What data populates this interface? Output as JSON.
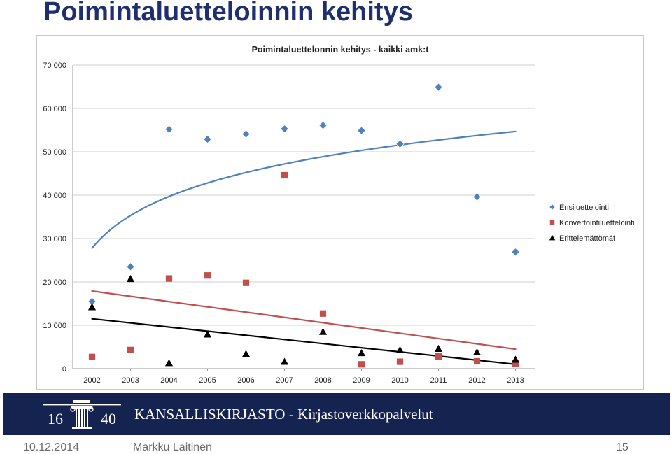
{
  "slide": {
    "title": "Poimintaluetteloinnin kehitys"
  },
  "brand": {
    "logo_text_left": "16",
    "logo_text_right": "40",
    "name": "KANSALLISKIRJASTO - Kirjastoverkkopalvelut",
    "bar_color": "#14234f"
  },
  "footer": {
    "date": "10.12.2014",
    "author": "Markku Laitinen",
    "page": "15"
  },
  "chart_data": {
    "type": "scatter",
    "title": "Poimintaluettelonnin kehitys - kaikki amk:t",
    "x": [
      "2002",
      "2003",
      "2004",
      "2005",
      "2006",
      "2007",
      "2008",
      "2009",
      "2010",
      "2011",
      "2012",
      "2013"
    ],
    "ylim": [
      0,
      70000
    ],
    "yticks": [
      0,
      10000,
      20000,
      30000,
      40000,
      50000,
      60000,
      70000
    ],
    "ytick_labels": [
      "0",
      "10 000",
      "20 000",
      "30 000",
      "40 000",
      "50 000",
      "60 000",
      "70 000"
    ],
    "grid": true,
    "legend_position": "right",
    "series": [
      {
        "name": "Ensiluettelointi",
        "marker": "diamond",
        "color": "#4f81bd",
        "values": [
          15500,
          23500,
          55200,
          52900,
          54100,
          55300,
          56100,
          54900,
          51800,
          64900,
          39600,
          26900
        ],
        "trendline": {
          "type": "logarithmic",
          "color": "#4f81bd",
          "start": 27800,
          "end": 54700
        }
      },
      {
        "name": "Konvertointiluettelointi",
        "marker": "square",
        "color": "#c0504d",
        "values": [
          2700,
          4300,
          20800,
          21500,
          19800,
          44600,
          12700,
          1000,
          1600,
          2800,
          1700,
          1200
        ],
        "trendline": {
          "type": "linear",
          "color": "#c0504d",
          "start": 17900,
          "end": 4500
        }
      },
      {
        "name": "Erittelemättömät",
        "marker": "triangle",
        "color": "#000000",
        "values": [
          14200,
          20700,
          1300,
          7900,
          3400,
          1600,
          8500,
          3600,
          4300,
          4600,
          3800,
          2100
        ],
        "trendline": {
          "type": "linear",
          "color": "#000000",
          "start": 11500,
          "end": 1000
        }
      }
    ]
  }
}
